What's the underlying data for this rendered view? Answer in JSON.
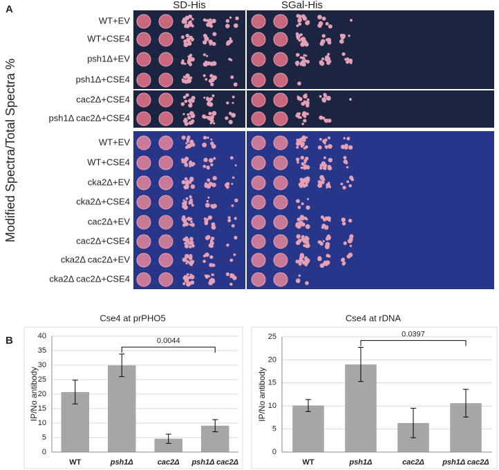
{
  "panel_a": {
    "label": "A",
    "y_label": "Modified Spectra/Total Spectra %",
    "columns": [
      "SD-His",
      "SGal-His"
    ],
    "blocks": [
      {
        "rows": [
          "WT+EV",
          "WT+CSE4",
          "psh1Δ+EV",
          "psh1Δ+CSE4",
          "cac2Δ+CSE4",
          "psh1Δ cac2Δ+CSE4"
        ]
      },
      {
        "rows": [
          "WT+EV",
          "WT+CSE4",
          "cka2Δ+EV",
          "cka2Δ+CSE4",
          "cac2Δ+EV",
          "cac2Δ+CSE4",
          "cka2Δ cac2Δ+EV",
          "cka2Δ cac2Δ+CSE4"
        ]
      }
    ]
  },
  "panel_b": {
    "label": "B"
  },
  "chart_data": [
    {
      "type": "bar",
      "title": "Cse4 at prPHO5",
      "y_label": "IP/No antibody",
      "categories": [
        "WT",
        "psh1Δ",
        "cac2Δ",
        "psh1Δ cac2Δ"
      ],
      "values": [
        20.7,
        29.9,
        4.6,
        9.1
      ],
      "errors": [
        4.1,
        3.9,
        1.6,
        2.1
      ],
      "color": "#a6a6a6",
      "ylim": [
        0,
        40
      ],
      "yticks": [
        0,
        5,
        10,
        15,
        20,
        25,
        30,
        35,
        40
      ],
      "grid": true,
      "annotation": "0.0044"
    },
    {
      "type": "bar",
      "title": "Cse4 at rDNA",
      "y_label": "IP/No antibody",
      "categories": [
        "WT",
        "psh1Δ",
        "cac2Δ",
        "psh1Δ cac2Δ"
      ],
      "values": [
        10.1,
        19,
        6.3,
        10.6
      ],
      "errors": [
        1.3,
        3.7,
        3.2,
        3.0
      ],
      "color": "#a6a6a6",
      "ylim": [
        0,
        25
      ],
      "yticks": [
        0,
        5,
        10,
        15,
        20,
        25
      ],
      "grid": true,
      "annotation": "0.0397"
    }
  ]
}
